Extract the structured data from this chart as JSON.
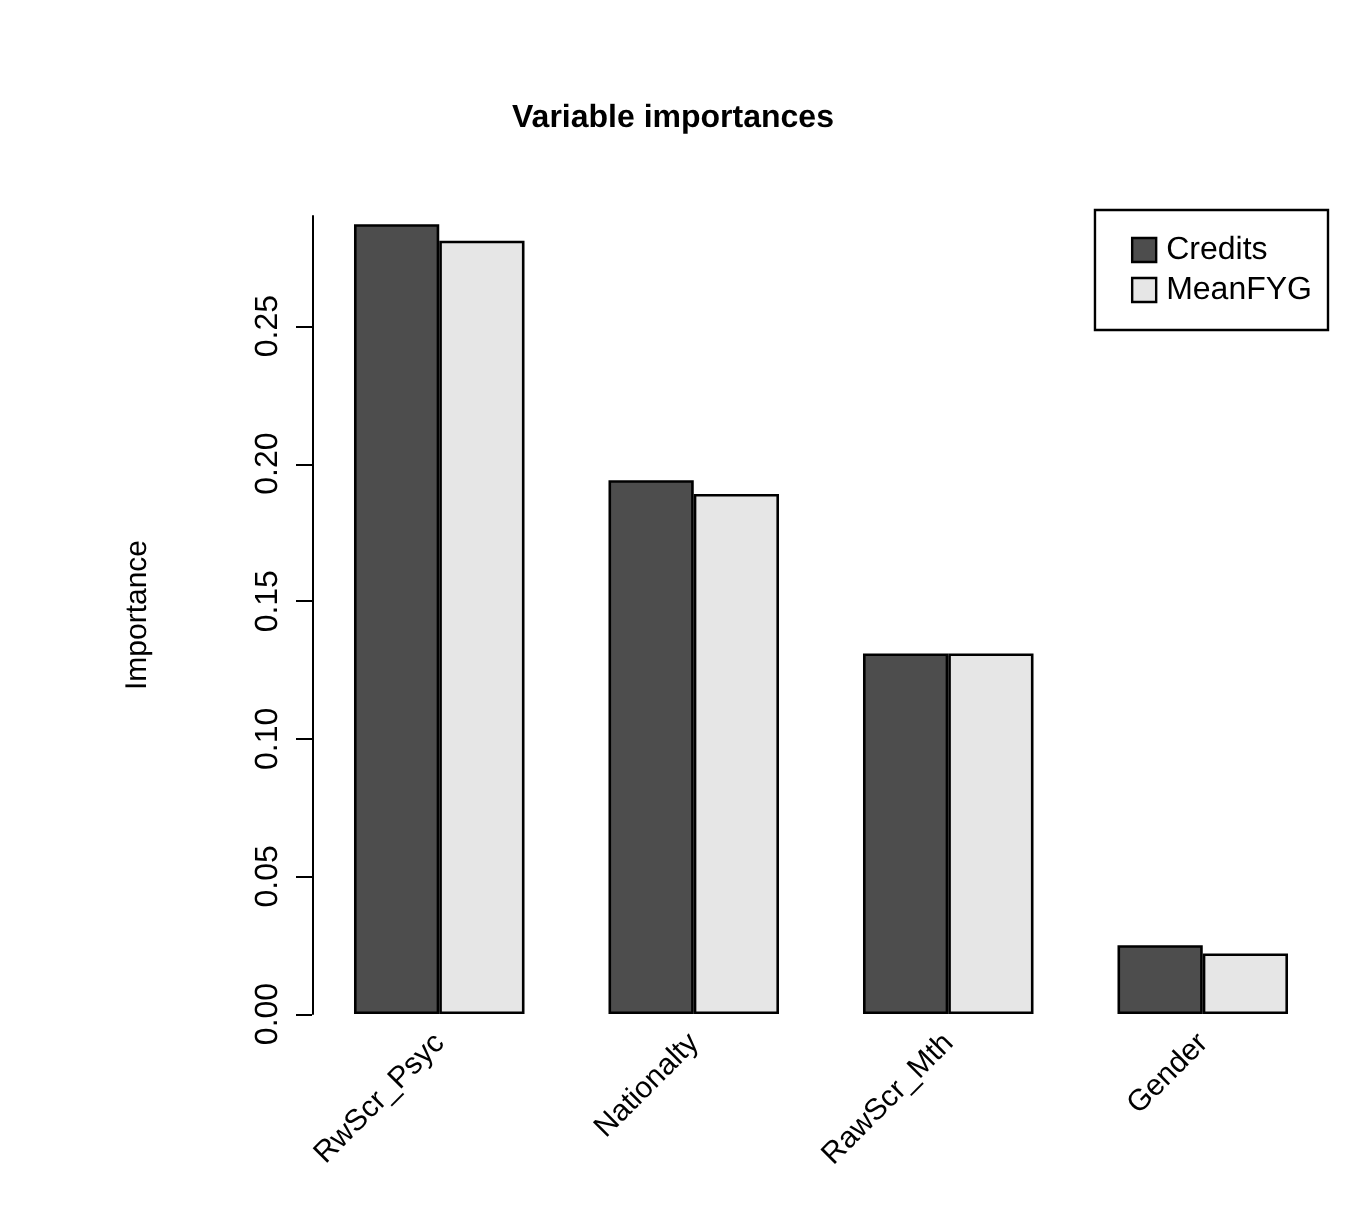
{
  "chart_data": {
    "type": "bar",
    "title": "Variable importances",
    "ylabel": "Importance",
    "categories": [
      "RwScr_Psyc",
      "Nationalty",
      "RawScr_Mth",
      "Gender"
    ],
    "series": [
      {
        "name": "Credits",
        "color": "#4d4d4d",
        "values": [
          0.287,
          0.194,
          0.131,
          0.025
        ]
      },
      {
        "name": "MeanFYG",
        "color": "#e6e6e6",
        "values": [
          0.281,
          0.189,
          0.131,
          0.022
        ]
      }
    ],
    "ylim": [
      0,
      0.29
    ],
    "yticks": [
      {
        "value": 0,
        "label": "0.00"
      },
      0.05,
      {
        "value": 0.1,
        "label": "0.10"
      },
      0.15,
      {
        "value": 0.2,
        "label": "0.20"
      },
      0.25
    ],
    "grid": false,
    "legend": "top right"
  }
}
